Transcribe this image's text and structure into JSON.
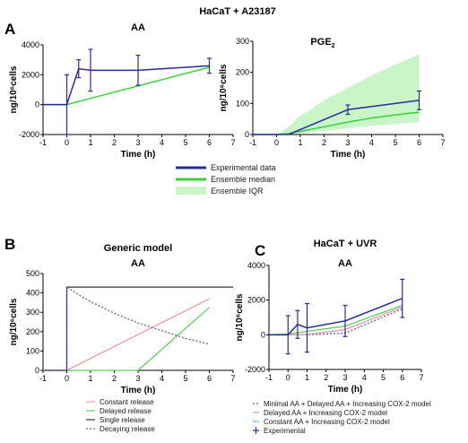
{
  "figure_title": "HaCaT + A23187",
  "panel_labels": {
    "a": "A",
    "b": "B",
    "c": "C"
  },
  "colors": {
    "experimental": "#2b2ba0",
    "median": "#36d436",
    "iqr": "#c9f5c9",
    "constant": "#ef9aa4",
    "delayed": "#5ccf5c",
    "single": "#333333",
    "decaying": "#5b5bc8",
    "minimal": "#5b5bc8",
    "delayed_cox2": "#ef9aa4",
    "constant_cox2": "#5ccf5c"
  },
  "legend_A": {
    "items": [
      {
        "label": "Experimental data",
        "key": "experimental",
        "style": "thick-line"
      },
      {
        "label": "Ensemble median",
        "key": "median",
        "style": "thick-line"
      },
      {
        "label": "Ensemble IQR",
        "key": "iqr",
        "style": "band"
      }
    ]
  },
  "legend_B": {
    "items": [
      {
        "label": "Constant release",
        "key": "constant",
        "style": "solid"
      },
      {
        "label": "Delayed release",
        "key": "delayed",
        "style": "solid"
      },
      {
        "label": "Single release",
        "key": "single",
        "style": "solid"
      },
      {
        "label": "Decaying release",
        "key": "decaying",
        "style": "dotted"
      }
    ]
  },
  "legend_C": {
    "items": [
      {
        "label": "Minimal AA + Delayed AA + Increasing COX-2 model",
        "key": "minimal",
        "style": "dotted"
      },
      {
        "label": "Delayed AA + Increasing COX-2 model",
        "key": "delayed_cox2",
        "style": "solid"
      },
      {
        "label": "Constant AA + Increasing COX-2 model",
        "key": "constant_cox2",
        "style": "solid"
      },
      {
        "label": "Experimental",
        "key": "experimental",
        "style": "errbar"
      }
    ]
  },
  "chart_data": [
    {
      "id": "A_AA",
      "type": "line",
      "title": "AA",
      "xlabel": "Time (h)",
      "ylabel": "ng/10⁶cells",
      "xlim": [
        -1,
        7
      ],
      "ylim": [
        -2000,
        4000
      ],
      "xticks": [
        "-1",
        "0",
        "1",
        "2",
        "3",
        "4",
        "5",
        "6",
        "7"
      ],
      "yticks": [
        "-2000",
        "0",
        "2000",
        "4000"
      ],
      "series": [
        {
          "key": "median",
          "x": [
            -1,
            0,
            6
          ],
          "y": [
            0,
            0,
            2500
          ]
        },
        {
          "key": "experimental",
          "x": [
            -1,
            0,
            0.5,
            1,
            3,
            6
          ],
          "y": [
            0,
            0,
            2400,
            2300,
            2300,
            2600
          ],
          "err": [
            0,
            2000,
            600,
            1400,
            1000,
            500
          ]
        }
      ]
    },
    {
      "id": "A_PGE2",
      "type": "line",
      "title": "PGE",
      "title_sub": "2",
      "xlabel": "Time (h)",
      "ylabel": "ng/10⁶cells",
      "xlim": [
        -1,
        7
      ],
      "ylim": [
        0,
        300
      ],
      "xticks": [
        "-1",
        "0",
        "1",
        "2",
        "3",
        "4",
        "5",
        "6",
        "7"
      ],
      "yticks": [
        "0",
        "100",
        "200",
        "300"
      ],
      "band": {
        "key": "iqr",
        "x": [
          -1,
          0,
          0.5,
          1,
          2,
          3,
          4,
          5,
          6
        ],
        "lo": [
          0,
          0,
          0,
          5,
          12,
          20,
          28,
          34,
          40
        ],
        "hi": [
          0,
          0,
          25,
          60,
          110,
          150,
          190,
          225,
          258
        ]
      },
      "series": [
        {
          "key": "median",
          "x": [
            -1,
            0,
            0.5,
            1,
            2,
            3,
            4,
            5,
            6
          ],
          "y": [
            0,
            0,
            3,
            10,
            25,
            40,
            53,
            63,
            72
          ]
        },
        {
          "key": "experimental",
          "x": [
            -1,
            0.5,
            3,
            6
          ],
          "y": [
            0,
            0,
            80,
            110
          ],
          "err": [
            0,
            0,
            15,
            30
          ]
        }
      ]
    },
    {
      "id": "B_AA",
      "type": "line",
      "title": "Generic model",
      "subtitle": "AA",
      "xlabel": "Time (h)",
      "ylabel": "ng/10⁶cells",
      "xlim": [
        -1,
        7
      ],
      "ylim": [
        0,
        500
      ],
      "xticks": [
        "-1",
        "0",
        "1",
        "2",
        "3",
        "4",
        "5",
        "6",
        "7"
      ],
      "yticks": [
        "0",
        "100",
        "200",
        "300",
        "400",
        "500"
      ],
      "series": [
        {
          "key": "constant",
          "x": [
            -1,
            0,
            6
          ],
          "y": [
            0,
            0,
            370
          ]
        },
        {
          "key": "delayed",
          "x": [
            -1,
            3,
            6
          ],
          "y": [
            0,
            0,
            325
          ]
        },
        {
          "key": "single",
          "x": [
            -1,
            0,
            0,
            7
          ],
          "y": [
            0,
            0,
            430,
            430
          ]
        },
        {
          "key": "decaying",
          "x": [
            -1,
            0,
            0,
            0.5,
            1,
            2,
            3,
            4,
            5,
            6
          ],
          "y": [
            0,
            0,
            430,
            390,
            355,
            295,
            245,
            205,
            165,
            135
          ]
        }
      ]
    },
    {
      "id": "C_AA",
      "type": "line",
      "title": "HaCaT + UVR",
      "subtitle": "AA",
      "xlabel": "Time (h)",
      "ylabel": "ng/10⁶cells",
      "xlim": [
        -1,
        7
      ],
      "ylim": [
        -2000,
        4000
      ],
      "xticks": [
        "-1",
        "0",
        "1",
        "2",
        "3",
        "4",
        "5",
        "6",
        "7"
      ],
      "yticks": [
        "-2000",
        "0",
        "2000",
        "4000"
      ],
      "series": [
        {
          "key": "minimal",
          "x": [
            -1,
            0,
            1,
            3,
            6
          ],
          "y": [
            0,
            0,
            0,
            100,
            1500
          ]
        },
        {
          "key": "delayed_cox2",
          "x": [
            -1,
            0,
            1,
            3,
            6
          ],
          "y": [
            0,
            0,
            20,
            300,
            1600
          ]
        },
        {
          "key": "constant_cox2",
          "x": [
            -1,
            0,
            1,
            3,
            6
          ],
          "y": [
            0,
            50,
            200,
            500,
            1700
          ]
        },
        {
          "key": "experimental",
          "x": [
            -1,
            0,
            0.5,
            1,
            3,
            6
          ],
          "y": [
            0,
            0,
            600,
            400,
            800,
            2100
          ],
          "err": [
            0,
            1100,
            800,
            1400,
            900,
            1100
          ]
        }
      ]
    }
  ]
}
